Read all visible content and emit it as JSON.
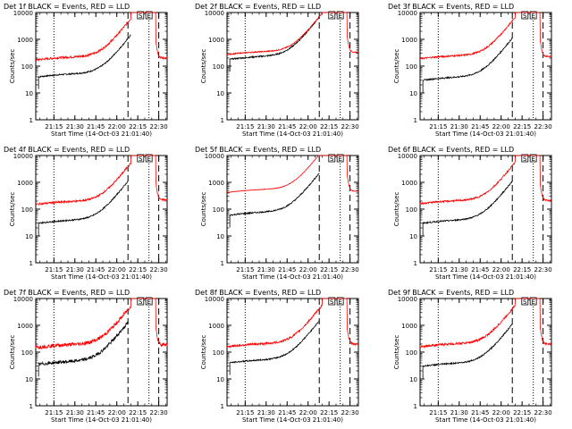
{
  "figure": {
    "xlabel": "Start Time (14-Oct-03 21:01:40)",
    "ylabel": "Counts/sec",
    "x_ticks": [
      "21:15",
      "21:30",
      "21:45",
      "22:00",
      "22:15",
      "22:30"
    ],
    "y_ticks": [
      "1",
      "10",
      "100",
      "1000",
      "10000"
    ],
    "marker_labels": [
      "S",
      "E"
    ]
  },
  "chart_data": [
    {
      "type": "line",
      "title": "Det 1f BLACK = Events, RED = LLD",
      "xlabel": "Start Time (14-Oct-03 21:01:40)",
      "ylabel": "Counts/sec",
      "xlim": [
        "21:02",
        "22:36"
      ],
      "ylim": [
        1,
        10000
      ],
      "yscale": "log",
      "x_ticks": [
        "21:15",
        "21:30",
        "21:45",
        "22:00",
        "22:15",
        "22:30"
      ],
      "y_ticks": [
        1,
        10,
        100,
        1000,
        10000
      ],
      "dotted_lines": [
        "21:15",
        "22:23"
      ],
      "dashed_lines": [
        "22:08",
        "22:30"
      ],
      "markers": [
        {
          "label": "S",
          "x": "22:17"
        },
        {
          "label": "E",
          "x": "22:23"
        }
      ],
      "series": [
        {
          "color": "#000000",
          "base": 40,
          "start": "21:04",
          "peak": "22:10",
          "end": "22:10",
          "spike": false
        },
        {
          "color": "#ff0000",
          "base": 170,
          "start": "21:02",
          "peak": "22:10",
          "end": "22:36",
          "tail": 200,
          "noise": 0.04
        }
      ]
    },
    {
      "type": "line",
      "title": "Det 2f BLACK = Events, RED = LLD",
      "xlabel": "Start Time (14-Oct-03 21:01:40)",
      "ylabel": "Counts/sec",
      "xlim": [
        "21:02",
        "22:36"
      ],
      "ylim": [
        1,
        10000
      ],
      "yscale": "log",
      "x_ticks": [
        "21:15",
        "21:30",
        "21:45",
        "22:00",
        "22:15",
        "22:30"
      ],
      "y_ticks": [
        1,
        10,
        100,
        1000,
        10000
      ],
      "dotted_lines": [
        "21:15",
        "22:23"
      ],
      "dashed_lines": [
        "22:08",
        "22:30"
      ],
      "markers": [
        {
          "label": "S",
          "x": "22:17"
        },
        {
          "label": "E",
          "x": "22:23"
        }
      ],
      "series": [
        {
          "color": "#000000",
          "base": 180,
          "start": "21:04",
          "peak": "22:08",
          "end": "22:08",
          "spike": false
        },
        {
          "color": "#ff0000",
          "base": 270,
          "start": "21:02",
          "peak": "22:10",
          "end": "22:36",
          "tail": 330,
          "noise": 0.02
        }
      ]
    },
    {
      "type": "line",
      "title": "Det 3f BLACK = Events, RED = LLD",
      "xlabel": "Start Time (14-Oct-03 21:01:40)",
      "ylabel": "Counts/sec",
      "xlim": [
        "21:02",
        "22:36"
      ],
      "ylim": [
        1,
        10000
      ],
      "yscale": "log",
      "x_ticks": [
        "21:15",
        "21:30",
        "21:45",
        "22:00",
        "22:15",
        "22:30"
      ],
      "y_ticks": [
        1,
        10,
        100,
        1000,
        10000
      ],
      "dotted_lines": [
        "21:15",
        "22:23"
      ],
      "dashed_lines": [
        "22:08",
        "22:30"
      ],
      "markers": [
        {
          "label": "S",
          "x": "22:17"
        },
        {
          "label": "E",
          "x": "22:23"
        }
      ],
      "series": [
        {
          "color": "#000000",
          "base": 30,
          "start": "21:04",
          "peak": "22:08",
          "end": "22:08",
          "spike": false
        },
        {
          "color": "#ff0000",
          "base": 190,
          "start": "21:02",
          "peak": "22:10",
          "end": "22:36",
          "tail": 230,
          "noise": 0.03
        }
      ]
    },
    {
      "type": "line",
      "title": "Det 4f BLACK = Events, RED = LLD",
      "xlabel": "Start Time (14-Oct-03 21:01:40)",
      "ylabel": "Counts/sec",
      "xlim": [
        "21:02",
        "22:36"
      ],
      "ylim": [
        1,
        10000
      ],
      "yscale": "log",
      "x_ticks": [
        "21:15",
        "21:30",
        "21:45",
        "22:00",
        "22:15",
        "22:30"
      ],
      "y_ticks": [
        1,
        10,
        100,
        1000,
        10000
      ],
      "dotted_lines": [
        "21:15",
        "22:23"
      ],
      "dashed_lines": [
        "22:08",
        "22:30"
      ],
      "markers": [
        {
          "label": "S",
          "x": "22:17"
        },
        {
          "label": "E",
          "x": "22:23"
        }
      ],
      "series": [
        {
          "color": "#000000",
          "base": 30,
          "start": "21:04",
          "peak": "22:08",
          "end": "22:08",
          "spike": false
        },
        {
          "color": "#ff0000",
          "base": 150,
          "start": "21:02",
          "peak": "22:10",
          "end": "22:36",
          "tail": 220,
          "noise": 0.035
        }
      ]
    },
    {
      "type": "line",
      "title": "Det 5f BLACK = Events, RED = LLD",
      "xlabel": "Start Time (14-Oct-03 21:01:40)",
      "ylabel": "Counts/sec",
      "xlim": [
        "21:02",
        "22:36"
      ],
      "ylim": [
        1,
        10000
      ],
      "yscale": "log",
      "x_ticks": [
        "21:15",
        "21:30",
        "21:45",
        "22:00",
        "22:15",
        "22:30"
      ],
      "y_ticks": [
        1,
        10,
        100,
        1000,
        10000
      ],
      "dotted_lines": [
        "21:15",
        "22:23"
      ],
      "dashed_lines": [
        "22:08",
        "22:30"
      ],
      "markers": [
        {
          "label": "S",
          "x": "22:17"
        },
        {
          "label": "E",
          "x": "22:23"
        }
      ],
      "series": [
        {
          "color": "#000000",
          "base": 60,
          "start": "21:04",
          "peak": "22:08",
          "end": "22:08",
          "spike": false
        },
        {
          "color": "#ff0000",
          "base": 420,
          "start": "21:02",
          "peak": "22:10",
          "end": "22:36",
          "tail": 470,
          "noise": 0.01
        }
      ]
    },
    {
      "type": "line",
      "title": "Det 6f BLACK = Events, RED = LLD",
      "xlabel": "Start Time (14-Oct-03 21:01:40)",
      "ylabel": "Counts/sec",
      "xlim": [
        "21:02",
        "22:36"
      ],
      "ylim": [
        1,
        10000
      ],
      "yscale": "log",
      "x_ticks": [
        "21:15",
        "21:30",
        "21:45",
        "22:00",
        "22:15",
        "22:30"
      ],
      "y_ticks": [
        1,
        10,
        100,
        1000,
        10000
      ],
      "dotted_lines": [
        "21:15",
        "22:23"
      ],
      "dashed_lines": [
        "22:08",
        "22:30"
      ],
      "markers": [
        {
          "label": "S",
          "x": "22:17"
        },
        {
          "label": "E",
          "x": "22:23"
        }
      ],
      "series": [
        {
          "color": "#000000",
          "base": 30,
          "start": "21:04",
          "peak": "22:08",
          "end": "22:08",
          "spike": false
        },
        {
          "color": "#ff0000",
          "base": 160,
          "start": "21:02",
          "peak": "22:10",
          "end": "22:36",
          "tail": 210,
          "noise": 0.03
        }
      ]
    },
    {
      "type": "line",
      "title": "Det 7f BLACK = Events, RED = LLD",
      "xlabel": "Start Time (14-Oct-03 21:01:40)",
      "ylabel": "Counts/sec",
      "xlim": [
        "21:02",
        "22:36"
      ],
      "ylim": [
        1,
        10000
      ],
      "yscale": "log",
      "x_ticks": [
        "21:15",
        "21:30",
        "21:45",
        "22:00",
        "22:15",
        "22:30"
      ],
      "y_ticks": [
        1,
        10,
        100,
        1000,
        10000
      ],
      "dotted_lines": [
        "21:15",
        "22:23"
      ],
      "dashed_lines": [
        "22:08",
        "22:30"
      ],
      "markers": [
        {
          "label": "S",
          "x": "22:17"
        },
        {
          "label": "E",
          "x": "22:23"
        }
      ],
      "series": [
        {
          "color": "#000000",
          "base": 35,
          "start": "21:04",
          "peak": "22:08",
          "end": "22:08",
          "spike": false,
          "noise": 0.06
        },
        {
          "color": "#ff0000",
          "base": 150,
          "start": "21:02",
          "peak": "22:10",
          "end": "22:36",
          "tail": 190,
          "noise": 0.07
        }
      ]
    },
    {
      "type": "line",
      "title": "Det 8f BLACK = Events, RED = LLD",
      "xlabel": "Start Time (14-Oct-03 21:01:40)",
      "ylabel": "Counts/sec",
      "xlim": [
        "21:02",
        "22:36"
      ],
      "ylim": [
        1,
        10000
      ],
      "yscale": "log",
      "x_ticks": [
        "21:15",
        "21:30",
        "21:45",
        "22:00",
        "22:15",
        "22:30"
      ],
      "y_ticks": [
        1,
        10,
        100,
        1000,
        10000
      ],
      "dotted_lines": [
        "21:15",
        "22:23"
      ],
      "dashed_lines": [
        "22:08",
        "22:30"
      ],
      "markers": [
        {
          "label": "S",
          "x": "22:17"
        },
        {
          "label": "E",
          "x": "22:23"
        }
      ],
      "series": [
        {
          "color": "#000000",
          "base": 40,
          "start": "21:04",
          "peak": "22:08",
          "end": "22:08",
          "spike": false
        },
        {
          "color": "#ff0000",
          "base": 160,
          "start": "21:02",
          "peak": "22:10",
          "end": "22:36",
          "tail": 200,
          "noise": 0.04
        }
      ]
    },
    {
      "type": "line",
      "title": "Det 9f BLACK = Events, RED = LLD",
      "xlabel": "Start Time (14-Oct-03 21:01:40)",
      "ylabel": "Counts/sec",
      "xlim": [
        "21:02",
        "22:36"
      ],
      "ylim": [
        1,
        10000
      ],
      "yscale": "log",
      "x_ticks": [
        "21:15",
        "21:30",
        "21:45",
        "22:00",
        "22:15",
        "22:30"
      ],
      "y_ticks": [
        1,
        10,
        100,
        1000,
        10000
      ],
      "dotted_lines": [
        "21:15",
        "22:23"
      ],
      "dashed_lines": [
        "22:08",
        "22:30"
      ],
      "markers": [
        {
          "label": "S",
          "x": "22:17"
        },
        {
          "label": "E",
          "x": "22:23"
        }
      ],
      "series": [
        {
          "color": "#000000",
          "base": 30,
          "start": "21:04",
          "peak": "22:08",
          "end": "22:08",
          "spike": false
        },
        {
          "color": "#ff0000",
          "base": 160,
          "start": "21:02",
          "peak": "22:10",
          "end": "22:36",
          "tail": 200,
          "noise": 0.04
        }
      ]
    }
  ]
}
